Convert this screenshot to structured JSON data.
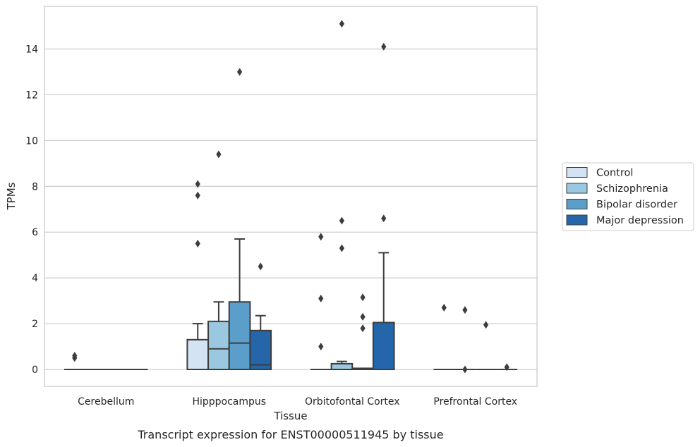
{
  "chart_data": {
    "type": "box",
    "caption": "Transcript expression for ENST00000511945 by tissue",
    "xlabel": "Tissue",
    "ylabel": "TPMs",
    "ylim": [
      -0.7,
      15.8
    ],
    "yticks": [
      0,
      2,
      4,
      6,
      8,
      10,
      12,
      14
    ],
    "grid": "horizontal",
    "legend_position": "right",
    "categories": [
      "Cerebellum",
      "Hipppocampus",
      "Orbitofontal Cortex",
      "Prefrontal Cortex"
    ],
    "series": [
      {
        "name": "Control",
        "color": "#d3e3f3",
        "boxes": [
          {
            "whisker_low": 0,
            "q1": 0,
            "median": 0,
            "q3": 0,
            "whisker_high": 0,
            "outliers": [
              0.6,
              0.5
            ]
          },
          {
            "whisker_low": 0,
            "q1": 0,
            "median": 0,
            "q3": 1.3,
            "whisker_high": 2.0,
            "outliers": [
              8.1,
              7.6,
              5.5
            ]
          },
          {
            "whisker_low": 0,
            "q1": 0,
            "median": 0,
            "q3": 0,
            "whisker_high": 0,
            "outliers": [
              5.8,
              3.1,
              1.0
            ]
          },
          {
            "whisker_low": 0,
            "q1": 0,
            "median": 0,
            "q3": 0,
            "whisker_high": 0,
            "outliers": [
              2.7
            ]
          }
        ]
      },
      {
        "name": "Schizophrenia",
        "color": "#9ac8e0",
        "boxes": [
          {
            "whisker_low": 0,
            "q1": 0,
            "median": 0,
            "q3": 0,
            "whisker_high": 0,
            "outliers": []
          },
          {
            "whisker_low": 0,
            "q1": 0,
            "median": 0.9,
            "q3": 2.1,
            "whisker_high": 2.95,
            "outliers": [
              9.4
            ]
          },
          {
            "whisker_low": 0,
            "q1": 0,
            "median": 0,
            "q3": 0.25,
            "whisker_high": 0.35,
            "outliers": [
              15.1,
              6.5,
              5.3
            ]
          },
          {
            "whisker_low": 0,
            "q1": 0,
            "median": 0,
            "q3": 0,
            "whisker_high": 0,
            "outliers": [
              2.6,
              0.0
            ]
          }
        ]
      },
      {
        "name": "Bipolar disorder",
        "color": "#5a9ec9",
        "boxes": [
          {
            "whisker_low": 0,
            "q1": 0,
            "median": 0,
            "q3": 0,
            "whisker_high": 0,
            "outliers": []
          },
          {
            "whisker_low": 0,
            "q1": 0,
            "median": 1.15,
            "q3": 2.95,
            "whisker_high": 5.7,
            "outliers": [
              13.0
            ]
          },
          {
            "whisker_low": 0,
            "q1": 0,
            "median": 0,
            "q3": 0.05,
            "whisker_high": 0.05,
            "outliers": [
              3.15,
              2.3,
              1.8
            ]
          },
          {
            "whisker_low": 0,
            "q1": 0,
            "median": 0,
            "q3": 0,
            "whisker_high": 0,
            "outliers": [
              1.95
            ]
          }
        ]
      },
      {
        "name": "Major depression",
        "color": "#2565a9",
        "boxes": [
          {
            "whisker_low": 0,
            "q1": 0,
            "median": 0,
            "q3": 0,
            "whisker_high": 0,
            "outliers": []
          },
          {
            "whisker_low": 0,
            "q1": 0,
            "median": 0.2,
            "q3": 1.7,
            "whisker_high": 2.35,
            "outliers": [
              4.5
            ]
          },
          {
            "whisker_low": 0,
            "q1": 0,
            "median": 0,
            "q3": 2.05,
            "whisker_high": 5.1,
            "outliers": [
              14.1,
              6.6
            ]
          },
          {
            "whisker_low": 0,
            "q1": 0,
            "median": 0,
            "q3": 0,
            "whisker_high": 0,
            "outliers": [
              0.1
            ]
          }
        ]
      }
    ]
  },
  "colors": {
    "edge": "#3d3d3d",
    "grid": "#cccccc",
    "frame": "#cccccc",
    "text": "#262626"
  }
}
